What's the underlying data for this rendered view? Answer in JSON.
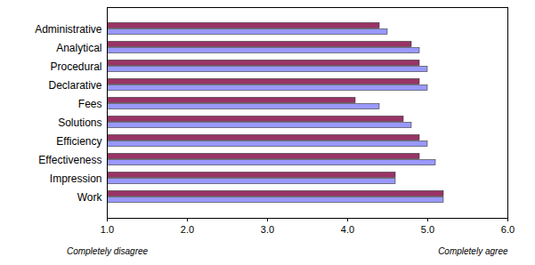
{
  "chart_data": {
    "type": "bar",
    "orientation": "horizontal",
    "categories": [
      "Administrative",
      "Analytical",
      "Procedural",
      "Declarative",
      "Fees",
      "Solutions",
      "Efficiency",
      "Effectiveness",
      "Impression",
      "Work"
    ],
    "series": [
      {
        "color": "#993366",
        "values": [
          4.4,
          4.8,
          4.9,
          4.9,
          4.1,
          4.7,
          4.9,
          4.9,
          4.6,
          5.2
        ]
      },
      {
        "color": "#9999ff",
        "values": [
          4.5,
          4.9,
          5.0,
          5.0,
          4.4,
          4.8,
          5.0,
          5.1,
          4.6,
          5.2
        ]
      }
    ],
    "xlim": [
      1,
      6
    ],
    "xticks": [
      1,
      2,
      3,
      4,
      5,
      6
    ],
    "grid": false,
    "annotations": [
      "Completely disagree",
      "Completely agree"
    ]
  }
}
